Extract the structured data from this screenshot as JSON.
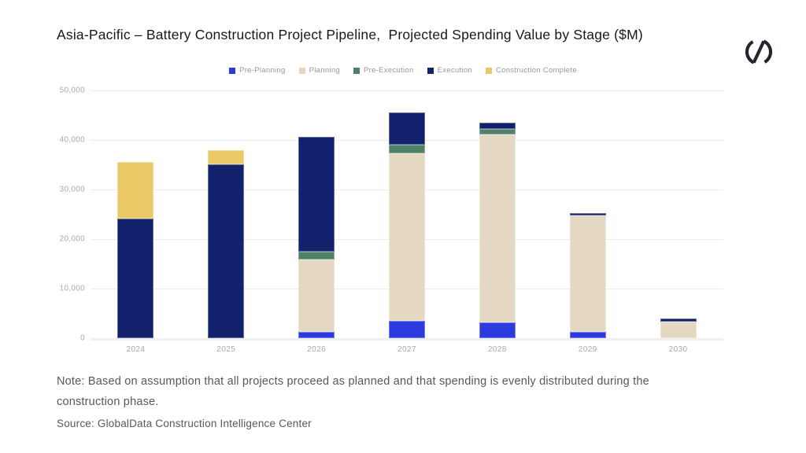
{
  "chart_data": {
    "type": "bar",
    "stacked": true,
    "title": "Asia-Pacific – Battery Construction Project Pipeline,  Projected Spending Value by Stage ($M)",
    "xlabel": "",
    "ylabel": "",
    "categories": [
      "2024",
      "2025",
      "2026",
      "2027",
      "2028",
      "2029",
      "2030"
    ],
    "series": [
      {
        "name": "Pre-Planning",
        "color": "#2b3be0",
        "values": [
          0,
          0,
          1300,
          3500,
          3200,
          1300,
          0
        ]
      },
      {
        "name": "Planning",
        "color": "#e5d8c2",
        "values": [
          0,
          0,
          14600,
          33800,
          37900,
          23500,
          3350
        ]
      },
      {
        "name": "Pre-Execution",
        "color": "#4f8068",
        "values": [
          0,
          0,
          1500,
          1700,
          1100,
          0,
          0
        ]
      },
      {
        "name": "Execution",
        "color": "#12216b",
        "values": [
          24100,
          35100,
          23300,
          6600,
          1300,
          400,
          550
        ]
      },
      {
        "name": "Construction Complete",
        "color": "#ebc967",
        "values": [
          11400,
          2800,
          0,
          0,
          0,
          0,
          0
        ]
      }
    ],
    "ylim": [
      0,
      50000
    ],
    "ytick_interval": 10000,
    "ytick_labels": [
      "50,000",
      "40,000",
      "30,000",
      "20,000",
      "10,000",
      "0"
    ],
    "grid": true,
    "legend_position": "top"
  },
  "footer": {
    "note": "Note: Based on assumption that all projects proceed as planned and that spending is evenly distributed during the construction phase.",
    "source": "Source: GlobalData Construction Intelligence Center"
  },
  "colors": {
    "grid": "#ececec",
    "axis_line": "#f0f0f0",
    "tick_text": "#a9a9ae",
    "legend_text": "#97979c",
    "title_text": "#17171f",
    "note_text": "#58585c",
    "logo": "#23262f"
  }
}
